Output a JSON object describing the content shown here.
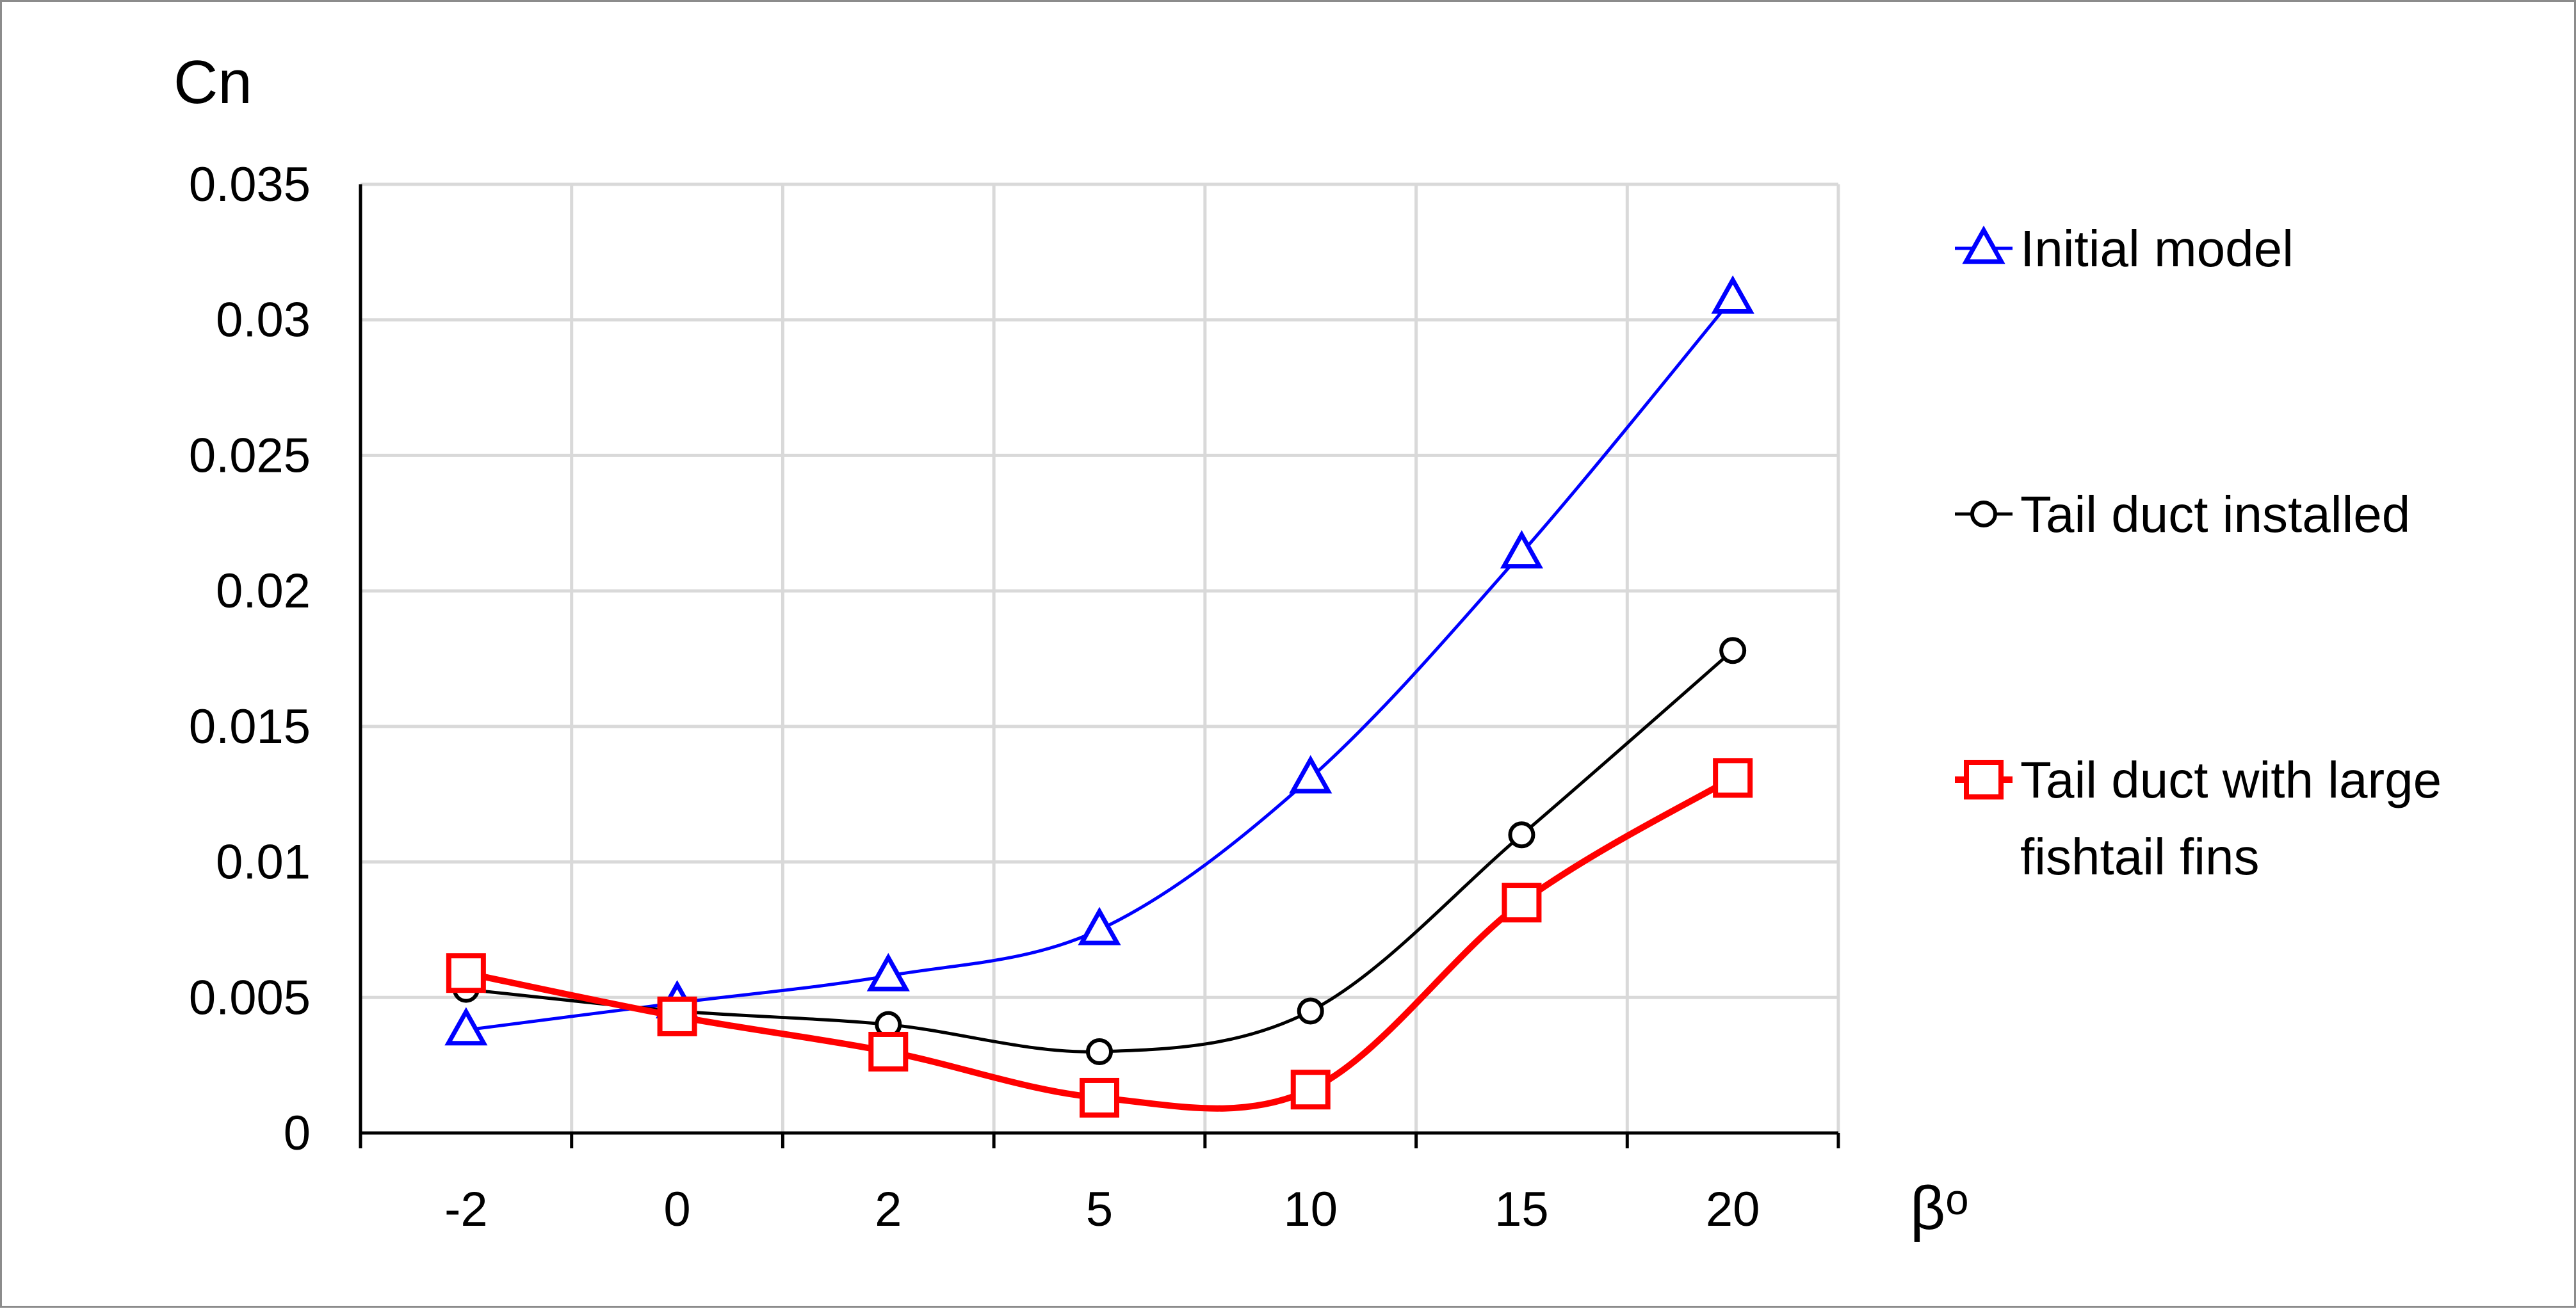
{
  "chart_data": {
    "type": "line",
    "categories": [
      "-2",
      "0",
      "2",
      "5",
      "10",
      "15",
      "20"
    ],
    "ylabel": "Cn",
    "xlabel": "βᵒ",
    "ylim": [
      0,
      0.035
    ],
    "yticks": [
      "0",
      "0.005",
      "0.01",
      "0.015",
      "0.02",
      "0.025",
      "0.03",
      "0.035"
    ],
    "grid": true,
    "legend_position": "right",
    "series": [
      {
        "name": "Initial model",
        "values": [
          0.0038,
          0.0048,
          0.0058,
          0.0075,
          0.0131,
          0.0214,
          0.0308
        ],
        "color": "#0000ff",
        "marker": "triangle"
      },
      {
        "name": "Tail duct installed",
        "values": [
          0.0053,
          0.0045,
          0.004,
          0.003,
          0.0045,
          0.011,
          0.0178
        ],
        "color": "#000000",
        "marker": "circle"
      },
      {
        "name": "Tail duct with large fishtail fins",
        "values": [
          0.0059,
          0.0043,
          0.003,
          0.0013,
          0.0016,
          0.0085,
          0.0131
        ],
        "color": "#ff0000",
        "marker": "square"
      }
    ]
  }
}
